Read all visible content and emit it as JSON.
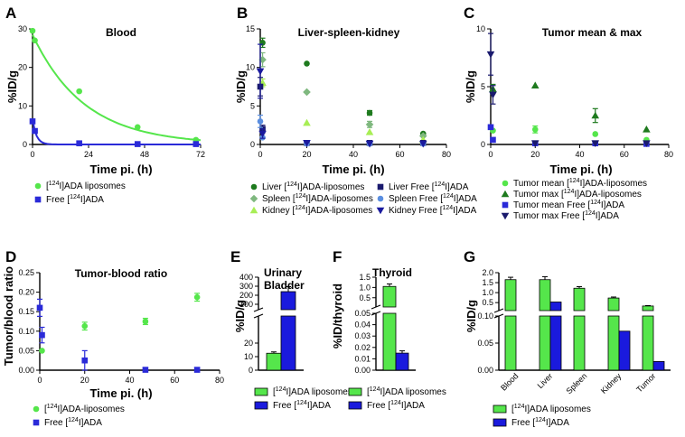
{
  "panels": {
    "A": {
      "letter": "A",
      "title": "Blood",
      "ylabel": "%ID/g",
      "xlabel": "Time pi. (h)"
    },
    "B": {
      "letter": "B",
      "title": "Liver-spleen-kidney",
      "ylabel": "%ID/g",
      "xlabel": "Time pi. (h)"
    },
    "C": {
      "letter": "C",
      "title": "Tumor mean & max",
      "ylabel": "%ID/g",
      "xlabel": "Time pi. (h)"
    },
    "D": {
      "letter": "D",
      "title": "Tumor-blood ratio",
      "ylabel": "Tumor/blood ratio",
      "xlabel": "Time pi. (h)"
    },
    "E": {
      "letter": "E",
      "title1": "Urinary",
      "title2": "Bladder",
      "ylabel": "%ID/g"
    },
    "F": {
      "letter": "F",
      "title": "Thyroid",
      "ylabel": "%ID/thyroid"
    },
    "G": {
      "letter": "G",
      "ylabel": "%ID/g"
    }
  },
  "legends": {
    "A": [
      {
        "pre": "[",
        "sup": "124",
        "post": "I]ADA liposomes",
        "color": "#55e64b",
        "marker": "circle"
      },
      {
        "pre": "Free [",
        "sup": "124",
        "post": "I]ADA",
        "color": "#2a2ad8",
        "marker": "square"
      }
    ],
    "B": [
      {
        "pre": "Liver [",
        "sup": "124",
        "post": "I]ADA-liposomes",
        "color": "#1e7a1e",
        "marker": "circle"
      },
      {
        "pre": "Spleen [",
        "sup": "124",
        "post": "I]ADA-liposomes",
        "color": "#7fb87f",
        "marker": "diamond"
      },
      {
        "pre": "Kidney [",
        "sup": "124",
        "post": "I]ADA-liposomes",
        "color": "#a8ee55",
        "marker": "triangle"
      },
      {
        "pre": "Liver Free [",
        "sup": "124",
        "post": "I]ADA",
        "color": "#1a1a6e",
        "marker": "square"
      },
      {
        "pre": "Spleen Free [",
        "sup": "124",
        "post": "I]ADA",
        "color": "#5a8ee0",
        "marker": "circle"
      },
      {
        "pre": "Kidney Free [",
        "sup": "124",
        "post": "I]ADA",
        "color": "#1a1a9e",
        "marker": "tri-down"
      }
    ],
    "C": [
      {
        "pre": "Tumor mean [",
        "sup": "124",
        "post": "I]ADA-liposomes",
        "color": "#55e64b",
        "marker": "circle"
      },
      {
        "pre": "Tumor max [",
        "sup": "124",
        "post": "I]ADA-liposomes",
        "color": "#1e7a1e",
        "marker": "triangle"
      },
      {
        "pre": "Tumor mean Free [",
        "sup": "124",
        "post": "I]ADA",
        "color": "#2a2ad8",
        "marker": "square"
      },
      {
        "pre": "Tumor max Free [",
        "sup": "124",
        "post": "I]ADA",
        "color": "#1a1a6e",
        "marker": "tri-down"
      }
    ],
    "D": [
      {
        "pre": "[",
        "sup": "124",
        "post": "I]ADA-liposomes",
        "color": "#55e64b",
        "marker": "circle"
      },
      {
        "pre": "Free [",
        "sup": "124",
        "post": "I]ADA",
        "color": "#2a2ad8",
        "marker": "square"
      }
    ],
    "E": [
      {
        "pre": "[",
        "sup": "124",
        "post": "I]ADA liposomes",
        "color": "#55e64b",
        "marker": "box"
      },
      {
        "pre": "Free [",
        "sup": "124",
        "post": "I]ADA",
        "color": "#1a1add",
        "marker": "box"
      }
    ],
    "F": [
      {
        "pre": "[",
        "sup": "124",
        "post": "I]ADA liposomes",
        "color": "#55e64b",
        "marker": "box"
      },
      {
        "pre": "Free [",
        "sup": "124",
        "post": "I]ADA",
        "color": "#1a1add",
        "marker": "box"
      }
    ],
    "G": [
      {
        "pre": "[",
        "sup": "124",
        "post": "I]ADA liposomes",
        "color": "#55e64b",
        "marker": "box"
      },
      {
        "pre": "Free [",
        "sup": "124",
        "post": "I]ADA",
        "color": "#1a1add",
        "marker": "box"
      }
    ]
  },
  "chart_data": [
    {
      "panel": "A",
      "type": "scatter",
      "title": "Blood",
      "xlabel": "Time pi. (h)",
      "ylabel": "%ID/g",
      "xlim": [
        0,
        72
      ],
      "ylim": [
        0,
        30
      ],
      "xticks": [
        0,
        24,
        48,
        72
      ],
      "yticks": [
        0,
        10,
        20,
        30
      ],
      "series": [
        {
          "name": "[124I]ADA liposomes",
          "color": "#55e64b",
          "marker": "circle",
          "points": [
            [
              0,
              29.5
            ],
            [
              1,
              27
            ],
            [
              20,
              13.8
            ],
            [
              45,
              4.5
            ],
            [
              70,
              1.2
            ]
          ],
          "fit": {
            "a": 28.5,
            "k": 0.045
          }
        },
        {
          "name": "Free [124I]ADA",
          "color": "#2a2ad8",
          "marker": "square",
          "points": [
            [
              0,
              6
            ],
            [
              1,
              3.5
            ],
            [
              20,
              0.3
            ],
            [
              45,
              0.1
            ],
            [
              70,
              0.1
            ]
          ],
          "fit": {
            "a": 6.5,
            "k": 0.6
          }
        }
      ]
    },
    {
      "panel": "B",
      "type": "scatter",
      "title": "Liver-spleen-kidney",
      "xlabel": "Time pi. (h)",
      "ylabel": "%ID/g",
      "xlim": [
        0,
        80
      ],
      "ylim": [
        0,
        15
      ],
      "xticks": [
        0,
        20,
        40,
        60,
        80
      ],
      "yticks": [
        0,
        5,
        10,
        15
      ],
      "series": [
        {
          "name": "Liver [124I]ADA-liposomes",
          "color": "#1e7a1e",
          "marker": "circle",
          "points": [
            [
              1,
              13.2
            ],
            [
              20,
              10.5
            ],
            [
              47,
              4.1
            ],
            [
              70,
              1.4
            ]
          ],
          "err": [
            0.6,
            0,
            0.3,
            0
          ]
        },
        {
          "name": "Spleen [124I]ADA-liposomes",
          "color": "#7fb87f",
          "marker": "diamond",
          "points": [
            [
              1,
              11
            ],
            [
              20,
              6.8
            ],
            [
              47,
              2.6
            ],
            [
              70,
              1.1
            ]
          ],
          "err": [
            0.9,
            0,
            0.4,
            0
          ]
        },
        {
          "name": "Kidney [124I]ADA-liposomes",
          "color": "#a8ee55",
          "marker": "triangle",
          "points": [
            [
              1,
              8
            ],
            [
              20,
              2.8
            ],
            [
              47,
              1.6
            ],
            [
              70,
              0.6
            ]
          ],
          "err": [
            0.5,
            0,
            0,
            0
          ]
        },
        {
          "name": "Liver Free [124I]ADA",
          "color": "#1a1a6e",
          "marker": "square",
          "points": [
            [
              0,
              7.5
            ],
            [
              1,
              2
            ],
            [
              20,
              0.2
            ],
            [
              47,
              0.2
            ],
            [
              70,
              0.2
            ]
          ],
          "err": [
            1.2,
            0.5,
            0,
            0,
            0
          ]
        },
        {
          "name": "Spleen Free [124I]ADA",
          "color": "#5a8ee0",
          "marker": "circle",
          "points": [
            [
              0,
              3
            ],
            [
              1,
              0.9
            ],
            [
              20,
              0.1
            ],
            [
              47,
              0.1
            ],
            [
              70,
              0.1
            ]
          ],
          "err": [
            0.8,
            0,
            0,
            0,
            0
          ]
        },
        {
          "name": "Kidney Free [124I]ADA",
          "color": "#1a1a9e",
          "marker": "tri-down",
          "points": [
            [
              0,
              9.5
            ],
            [
              1,
              1.4
            ],
            [
              20,
              0.2
            ],
            [
              47,
              0.1
            ],
            [
              70,
              0.1
            ]
          ],
          "err": [
            3.5,
            0.6,
            0,
            0,
            0
          ]
        }
      ]
    },
    {
      "panel": "C",
      "type": "scatter",
      "title": "Tumor mean & max",
      "xlabel": "Time pi. (h)",
      "ylabel": "%ID/g",
      "xlim": [
        0,
        80
      ],
      "ylim": [
        0,
        10
      ],
      "xticks": [
        0,
        20,
        40,
        60,
        80
      ],
      "yticks": [
        0,
        5,
        10
      ],
      "series": [
        {
          "name": "Tumor mean [124I]ADA-liposomes",
          "color": "#55e64b",
          "marker": "circle",
          "points": [
            [
              1,
              1.2
            ],
            [
              20,
              1.3
            ],
            [
              47,
              0.9
            ],
            [
              70,
              0.4
            ]
          ],
          "err": [
            0,
            0.3,
            0,
            0
          ]
        },
        {
          "name": "Tumor max [124I]ADA-liposomes",
          "color": "#1e7a1e",
          "marker": "triangle",
          "points": [
            [
              1,
              4.8
            ],
            [
              20,
              5.1
            ],
            [
              47,
              2.5
            ],
            [
              70,
              1.3
            ]
          ],
          "err": [
            0.4,
            0,
            0.6,
            0
          ]
        },
        {
          "name": "Tumor mean Free [124I]ADA",
          "color": "#2a2ad8",
          "marker": "square",
          "points": [
            [
              0,
              1.5
            ],
            [
              1,
              0.4
            ],
            [
              20,
              0.1
            ],
            [
              47,
              0.1
            ],
            [
              70,
              0.05
            ]
          ],
          "err": [
            0,
            0,
            0,
            0,
            0
          ]
        },
        {
          "name": "Tumor max Free [124I]ADA",
          "color": "#1a1a6e",
          "marker": "tri-down",
          "points": [
            [
              0,
              7.8
            ],
            [
              1,
              4.3
            ],
            [
              20,
              0.1
            ],
            [
              47,
              0.1
            ],
            [
              70,
              0.1
            ]
          ],
          "err": [
            1.8,
            0.8,
            0,
            0,
            0
          ]
        }
      ]
    },
    {
      "panel": "D",
      "type": "scatter",
      "title": "Tumor-blood ratio",
      "xlabel": "Time pi. (h)",
      "ylabel": "Tumor/blood ratio",
      "xlim": [
        0,
        80
      ],
      "ylim": [
        0,
        0.25
      ],
      "xticks": [
        0,
        20,
        40,
        60,
        80
      ],
      "yticks": [
        0,
        0.05,
        0.1,
        0.15,
        0.2,
        0.25
      ],
      "series": [
        {
          "name": "[124I]ADA-liposomes",
          "color": "#55e64b",
          "marker": "circle",
          "points": [
            [
              1,
              0.05
            ],
            [
              20,
              0.113
            ],
            [
              47,
              0.125
            ],
            [
              70,
              0.187
            ]
          ],
          "err": [
            0,
            0.01,
            0.008,
            0.01
          ]
        },
        {
          "name": "Free [124I]ADA",
          "color": "#2a2ad8",
          "marker": "square",
          "points": [
            [
              0,
              0.16
            ],
            [
              1,
              0.09
            ],
            [
              20,
              0.025
            ],
            [
              47,
              0.001
            ],
            [
              70,
              0.001
            ]
          ],
          "err": [
            0.022,
            0.02,
            0.025,
            0,
            0
          ]
        }
      ]
    },
    {
      "panel": "E",
      "type": "bar",
      "title": "Urinary Bladder",
      "ylabel": "%ID/g",
      "broken_axis": {
        "lower": [
          0,
          40
        ],
        "upper": [
          40,
          400
        ]
      },
      "yticks_lower": [
        0,
        10,
        20
      ],
      "yticks_upper": [
        100,
        200,
        300,
        400
      ],
      "series": [
        {
          "name": "[124I]ADA liposomes",
          "color": "#55e64b",
          "values": [
            12.5
          ],
          "err": [
            1
          ]
        },
        {
          "name": "Free [124I]ADA",
          "color": "#1a1add",
          "values": [
            240
          ],
          "err": [
            55
          ]
        }
      ]
    },
    {
      "panel": "F",
      "type": "bar",
      "title": "Thyroid",
      "ylabel": "%ID/thyroid",
      "broken_axis": {
        "lower": [
          0,
          0.05
        ],
        "upper": [
          0.05,
          1.5
        ]
      },
      "yticks_lower": [
        0.0,
        0.01,
        0.02,
        0.03,
        0.04,
        0.05
      ],
      "yticks_upper": [
        0.5,
        1.0,
        1.5
      ],
      "series": [
        {
          "name": "[124I]ADA liposomes",
          "color": "#55e64b",
          "values": [
            1.05
          ],
          "err": [
            0.12
          ]
        },
        {
          "name": "Free [124I]ADA",
          "color": "#1a1add",
          "values": [
            0.015
          ],
          "err": [
            0.002
          ]
        }
      ]
    },
    {
      "panel": "G",
      "type": "bar",
      "ylabel": "%ID/g",
      "categories": [
        "Blood",
        "Liver",
        "Spleen",
        "Kidney",
        "Tumor"
      ],
      "broken_axis": {
        "lower": [
          0,
          0.1
        ],
        "upper": [
          0.1,
          2.0
        ]
      },
      "yticks_lower": [
        0.0,
        0.05,
        0.1
      ],
      "yticks_upper": [
        0.5,
        1.0,
        1.5,
        2.0
      ],
      "series": [
        {
          "name": "[124I]ADA liposomes",
          "color": "#55e64b",
          "values": [
            1.65,
            1.65,
            1.22,
            0.73,
            0.33
          ],
          "err": [
            0.12,
            0.15,
            0.08,
            0.05,
            0.02
          ]
        },
        {
          "name": "Free [124I]ADA",
          "color": "#1a1add",
          "values": [
            0,
            0.53,
            0,
            0.072,
            0.016
          ],
          "err": [
            0,
            0,
            0,
            0,
            0
          ]
        }
      ]
    }
  ]
}
